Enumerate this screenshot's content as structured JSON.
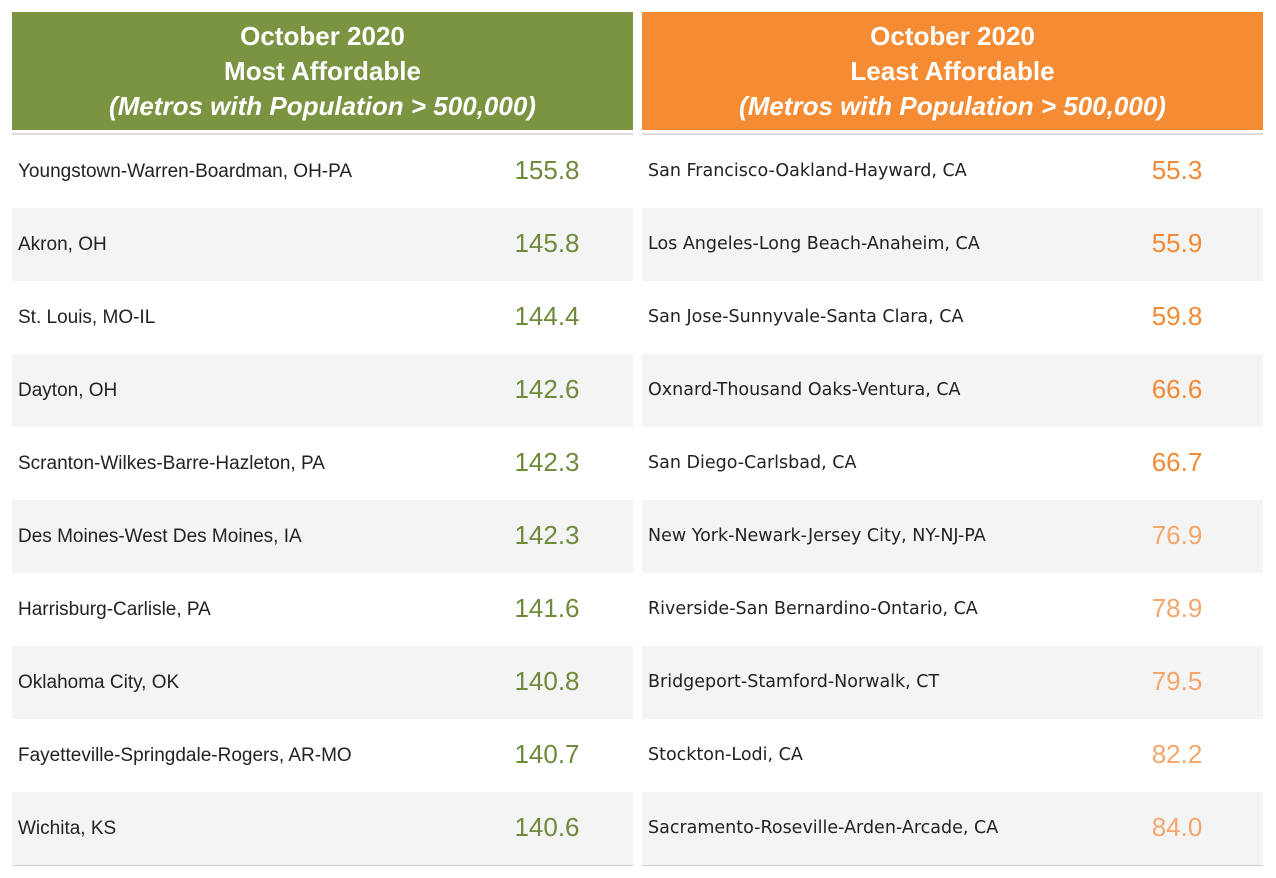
{
  "tables": [
    {
      "title_lines": [
        "October 2020",
        "Most Affordable",
        "(Metros with Population > 500,000)"
      ],
      "rows": [
        [
          "Youngstown-Warren-Boardman, OH-PA",
          "155.8"
        ],
        [
          "Akron, OH",
          "145.8"
        ],
        [
          "St. Louis, MO-IL",
          "144.4"
        ],
        [
          "Dayton, OH",
          "142.6"
        ],
        [
          "Scranton-Wilkes-Barre-Hazleton, PA",
          "142.3"
        ],
        [
          "Des Moines-West Des Moines, IA",
          "142.3"
        ],
        [
          "Harrisburg-Carlisle, PA",
          "141.6"
        ],
        [
          "Oklahoma City, OK",
          "140.8"
        ],
        [
          "Fayetteville-Springdale-Rogers, AR-MO",
          "140.7"
        ],
        [
          "Wichita, KS",
          "140.6"
        ]
      ]
    },
    {
      "title_lines": [
        "October 2020",
        "Least Affordable",
        "(Metros with Population > 500,000)"
      ],
      "rows": [
        [
          "San Francisco-Oakland-Hayward, CA",
          "55.3"
        ],
        [
          "Los Angeles-Long Beach-Anaheim, CA",
          "55.9"
        ],
        [
          "San Jose-Sunnyvale-Santa Clara, CA",
          "59.8"
        ],
        [
          "Oxnard-Thousand Oaks-Ventura, CA",
          "66.6"
        ],
        [
          "San Diego-Carlsbad, CA",
          "66.7"
        ],
        [
          "New York-Newark-Jersey City, NY-NJ-PA",
          "76.9"
        ],
        [
          "Riverside-San Bernardino-Ontario, CA",
          "78.9"
        ],
        [
          "Bridgeport-Stamford-Norwalk, CT",
          "79.5"
        ],
        [
          "Stockton-Lodi, CA",
          "82.2"
        ],
        [
          "Sacramento-Roseville-Arden-Arcade, CA",
          "84.0"
        ]
      ]
    }
  ]
}
